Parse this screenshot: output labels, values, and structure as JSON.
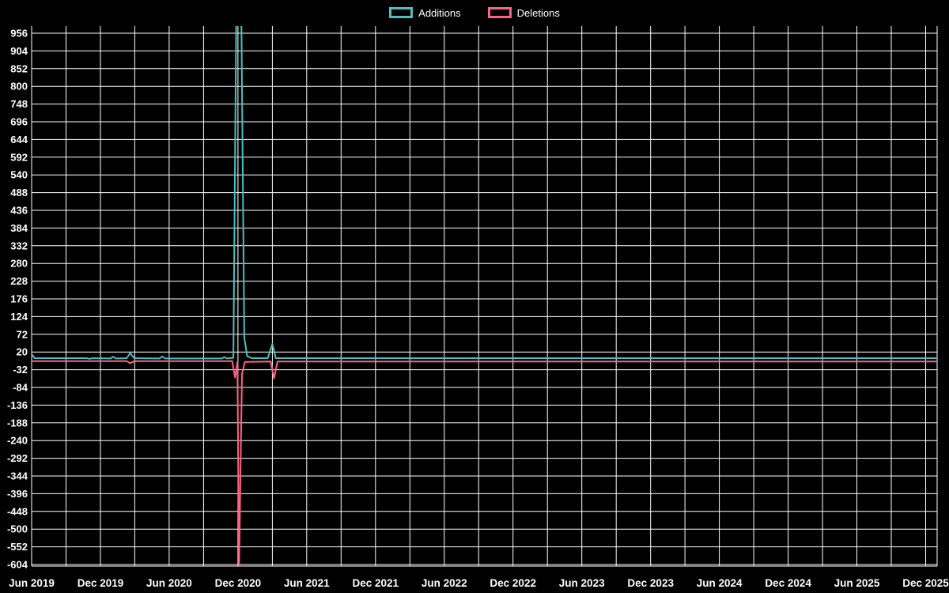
{
  "colors": {
    "background": "#000000",
    "text": "#ffffff",
    "grid": "#ffffff",
    "additions": "#4bc0c0",
    "deletions": "#ff6384"
  },
  "legend": {
    "items": [
      {
        "label": "Additions",
        "color": "#4bc0c0"
      },
      {
        "label": "Deletions",
        "color": "#ff6384"
      }
    ]
  },
  "chart_data": {
    "type": "line",
    "title": "",
    "legend_position": "top-center",
    "grid": true,
    "x_axis": {
      "total_months": 79,
      "gridline_interval_months": 3,
      "last_gridline_month": 78,
      "tick_label_interval_months": 6,
      "tick_labels": [
        "Jun 2019",
        "Dec 2019",
        "Jun 2020",
        "Dec 2020",
        "Jun 2021",
        "Dec 2021",
        "Jun 2022",
        "Dec 2022",
        "Jun 2023",
        "Dec 2023",
        "Jun 2024",
        "Dec 2024",
        "Jun 2025",
        "Dec 2025"
      ]
    },
    "y_axis": {
      "min": -604,
      "max": 956,
      "tick_step": 52,
      "tick_labels": [
        956,
        904,
        852,
        800,
        748,
        696,
        644,
        592,
        540,
        488,
        436,
        384,
        332,
        280,
        228,
        176,
        124,
        72,
        20,
        -32,
        -84,
        -136,
        -188,
        -240,
        -292,
        -344,
        -396,
        -448,
        -500,
        -552,
        -604
      ]
    },
    "series": [
      {
        "name": "Additions",
        "color": "#4bc0c0",
        "points": [
          [
            0,
            14
          ],
          [
            0.25,
            2
          ],
          [
            4.8,
            2
          ],
          [
            5.05,
            0
          ],
          [
            5.3,
            2
          ],
          [
            6.9,
            1
          ],
          [
            7.1,
            6
          ],
          [
            7.35,
            1
          ],
          [
            8.3,
            2
          ],
          [
            8.6,
            17
          ],
          [
            8.95,
            2
          ],
          [
            11.15,
            1
          ],
          [
            11.4,
            7
          ],
          [
            11.65,
            1
          ],
          [
            16.6,
            1
          ],
          [
            16.8,
            5
          ],
          [
            17.05,
            1
          ],
          [
            17.6,
            3
          ],
          [
            17.85,
            1000
          ],
          [
            18.3,
            1000
          ],
          [
            18.55,
            62
          ],
          [
            18.8,
            8
          ],
          [
            19.2,
            2
          ],
          [
            20.6,
            2
          ],
          [
            21,
            44
          ],
          [
            21.3,
            2
          ],
          [
            30,
            2
          ],
          [
            50,
            2
          ],
          [
            79,
            2
          ]
        ]
      },
      {
        "name": "Deletions",
        "color": "#ff6384",
        "points": [
          [
            0,
            -7
          ],
          [
            8.3,
            -7
          ],
          [
            8.6,
            -13
          ],
          [
            8.95,
            -7
          ],
          [
            17.5,
            -7
          ],
          [
            17.75,
            -55
          ],
          [
            17.95,
            -10
          ],
          [
            18.1,
            -610
          ],
          [
            18.35,
            -45
          ],
          [
            18.6,
            -9
          ],
          [
            20.85,
            -8
          ],
          [
            21.15,
            -57
          ],
          [
            21.45,
            -8
          ],
          [
            30,
            -8
          ],
          [
            50,
            -8
          ],
          [
            79,
            -8
          ]
        ]
      }
    ]
  }
}
